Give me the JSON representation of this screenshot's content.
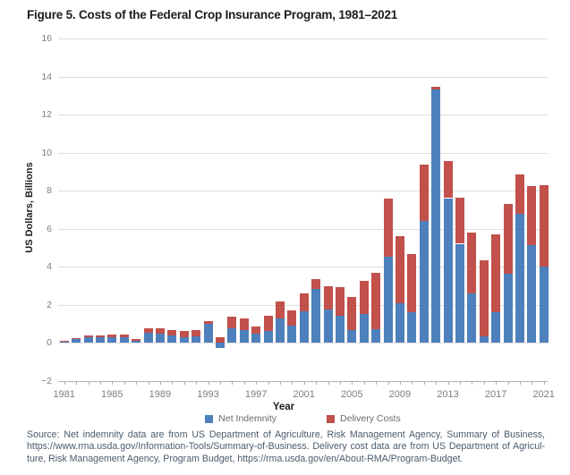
{
  "figure": {
    "title": "Figure 5. Costs of the Federal Crop Insurance Program, 1981–2021",
    "source_lines": [
      "Source: Net indemnity data are from US Department of Agriculture, Risk Management Agency, Summary of Business,",
      "https://www.rma.usda.gov/Information-Tools/Summary-of-Business. Delivery cost data are from US Department of Agricul-",
      "ture, Risk Management Agency, Program Budget, https://rma.usda.gov/en/About-RMA/Program-Budget."
    ]
  },
  "chart_data": {
    "type": "bar",
    "stacked": true,
    "title": "Figure 5. Costs of the Federal Crop Insurance Program, 1981–2021",
    "xlabel": "Year",
    "ylabel": "US Dollars, Billions",
    "ylim": [
      -2,
      16
    ],
    "yticks": [
      16,
      14,
      12,
      10,
      8,
      6,
      4,
      2,
      0,
      -2
    ],
    "xtick_years": [
      1981,
      1985,
      1989,
      1993,
      1997,
      2001,
      2005,
      2009,
      2013,
      2017,
      2021
    ],
    "grid": true,
    "legend_position": "bottom",
    "categories": [
      1981,
      1982,
      1983,
      1984,
      1985,
      1986,
      1987,
      1988,
      1989,
      1990,
      1991,
      1992,
      1993,
      1994,
      1995,
      1996,
      1997,
      1998,
      1999,
      2000,
      2001,
      2002,
      2003,
      2004,
      2005,
      2006,
      2007,
      2008,
      2009,
      2010,
      2011,
      2012,
      2013,
      2014,
      2015,
      2016,
      2017,
      2018,
      2019,
      2020,
      2021
    ],
    "series": [
      {
        "name": "Net Indemnity",
        "color": "#4d80bd",
        "values": [
          0.05,
          0.17,
          0.28,
          0.26,
          0.3,
          0.3,
          0.1,
          0.52,
          0.46,
          0.36,
          0.3,
          0.32,
          0.97,
          -0.28,
          0.75,
          0.65,
          0.45,
          0.6,
          1.28,
          0.9,
          1.63,
          2.82,
          1.75,
          1.4,
          0.65,
          1.5,
          0.7,
          4.5,
          2.05,
          1.6,
          6.38,
          13.3,
          7.6,
          5.2,
          2.6,
          0.35,
          1.6,
          3.62,
          6.8,
          5.12,
          4.0
        ]
      },
      {
        "name": "Delivery Costs",
        "color": "#c2504b",
        "values": [
          0.06,
          0.08,
          0.11,
          0.11,
          0.13,
          0.13,
          0.1,
          0.22,
          0.31,
          0.28,
          0.31,
          0.33,
          0.16,
          0.3,
          0.6,
          0.6,
          0.4,
          0.81,
          0.87,
          0.8,
          0.97,
          0.54,
          1.2,
          1.52,
          1.75,
          1.77,
          2.95,
          3.06,
          3.55,
          3.06,
          2.99,
          0.14,
          1.97,
          2.43,
          3.2,
          3.98,
          4.1,
          3.66,
          2.05,
          3.1,
          4.3
        ]
      }
    ]
  }
}
